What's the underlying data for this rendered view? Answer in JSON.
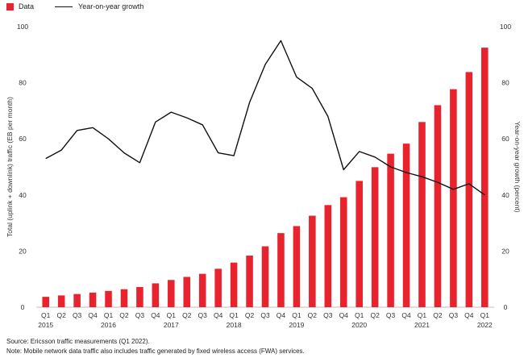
{
  "chart_data": {
    "type": "bar+line",
    "legend": [
      {
        "label": "Data",
        "kind": "bar",
        "color": "#e8232e"
      },
      {
        "label": "Year-on-year growth",
        "kind": "line",
        "color": "#111111"
      }
    ],
    "legend_placement": "top-left",
    "quarters": [
      "Q1",
      "Q2",
      "Q3",
      "Q4",
      "Q1",
      "Q2",
      "Q3",
      "Q4",
      "Q1",
      "Q2",
      "Q3",
      "Q4",
      "Q1",
      "Q2",
      "Q3",
      "Q4",
      "Q1",
      "Q2",
      "Q3",
      "Q4",
      "Q1",
      "Q2",
      "Q3",
      "Q4",
      "Q1",
      "Q2",
      "Q3",
      "Q4",
      "Q1"
    ],
    "years": [
      {
        "label": "2015",
        "index": 0
      },
      {
        "label": "2016",
        "index": 4
      },
      {
        "label": "2017",
        "index": 8
      },
      {
        "label": "2018",
        "index": 12
      },
      {
        "label": "2019",
        "index": 16
      },
      {
        "label": "2020",
        "index": 20
      },
      {
        "label": "2021",
        "index": 24
      },
      {
        "label": "2022",
        "index": 28
      }
    ],
    "series": [
      {
        "name": "Data",
        "type": "bar",
        "axis": "left",
        "values": [
          3.7,
          4.2,
          4.7,
          5.2,
          5.8,
          6.4,
          7.2,
          8.5,
          9.7,
          10.8,
          11.9,
          13.7,
          15.9,
          18.4,
          21.7,
          26.4,
          28.9,
          32.6,
          36.4,
          39.2,
          45.0,
          49.9,
          54.7,
          58.3,
          66.0,
          72.0,
          77.7,
          83.8,
          92.5
        ]
      },
      {
        "name": "Year-on-year growth",
        "type": "line",
        "axis": "right",
        "values": [
          53,
          56,
          63,
          64,
          60,
          55,
          51.5,
          66,
          69.5,
          67.5,
          65,
          55,
          54,
          73,
          86.5,
          95,
          82,
          78,
          68,
          49,
          55.5,
          53.5,
          50,
          48,
          46.5,
          44.5,
          42,
          44,
          40
        ]
      }
    ],
    "ylabel_left": "Total (uplink + downlink) traffic (EB per month)",
    "ylabel_right": "Year-on-year growth (percent)",
    "ylim_left": [
      0,
      100
    ],
    "ylim_right": [
      0,
      100
    ],
    "yticks": [
      0,
      20,
      40,
      60,
      80,
      100
    ],
    "grid": false
  },
  "footnotes": {
    "source": "Source: Ericsson traffic measurements (Q1 2022).",
    "note": "Note: Mobile network data traffic also includes traffic generated by fixed wireless access (FWA) services."
  }
}
